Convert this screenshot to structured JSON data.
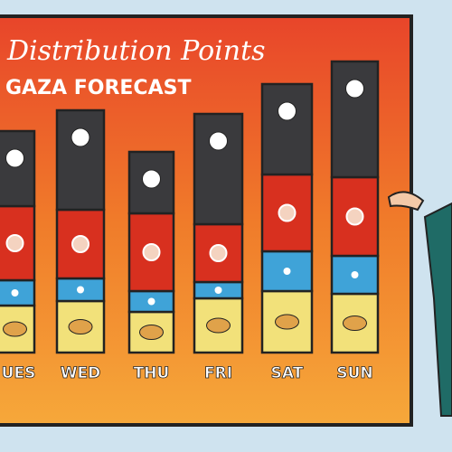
{
  "chart_data": {
    "type": "stacked-bar",
    "title": "Distribution Points",
    "subtitle": "GAZA FORECAST",
    "categories": [
      "UES",
      "WED",
      "THU",
      "FRI",
      "SAT",
      "SUN"
    ],
    "series": [
      {
        "color": "#f2e17a",
        "values": [
          52,
          57,
          45,
          60,
          68,
          65
        ]
      },
      {
        "color": "#3fa3d8",
        "values": [
          28,
          25,
          23,
          18,
          44,
          42
        ]
      },
      {
        "color": "#d8301f",
        "values": [
          82,
          76,
          86,
          64,
          85,
          87
        ]
      },
      {
        "color": "#3a3a3d",
        "values": [
          83,
          110,
          68,
          122,
          100,
          128
        ]
      }
    ]
  }
}
